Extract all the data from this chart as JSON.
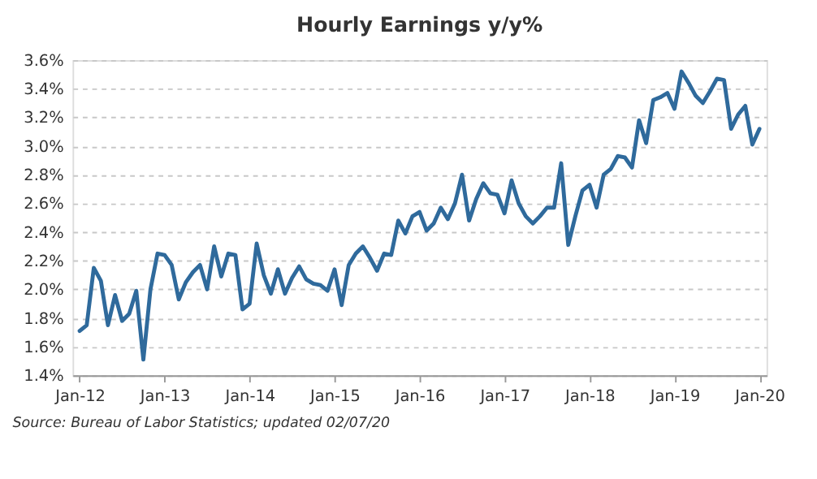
{
  "chart_data": {
    "type": "line",
    "title": "Hourly Earnings y/y%",
    "annotations": [
      "Source: Bureau of Labor Statistics; updated 02/07/20"
    ],
    "x": [
      "2012-01",
      "2012-02",
      "2012-03",
      "2012-04",
      "2012-05",
      "2012-06",
      "2012-07",
      "2012-08",
      "2012-09",
      "2012-10",
      "2012-11",
      "2012-12",
      "2013-01",
      "2013-02",
      "2013-03",
      "2013-04",
      "2013-05",
      "2013-06",
      "2013-07",
      "2013-08",
      "2013-09",
      "2013-10",
      "2013-11",
      "2013-12",
      "2014-01",
      "2014-02",
      "2014-03",
      "2014-04",
      "2014-05",
      "2014-06",
      "2014-07",
      "2014-08",
      "2014-09",
      "2014-10",
      "2014-11",
      "2014-12",
      "2015-01",
      "2015-02",
      "2015-03",
      "2015-04",
      "2015-05",
      "2015-06",
      "2015-07",
      "2015-08",
      "2015-09",
      "2015-10",
      "2015-11",
      "2015-12",
      "2016-01",
      "2016-02",
      "2016-03",
      "2016-04",
      "2016-05",
      "2016-06",
      "2016-07",
      "2016-08",
      "2016-09",
      "2016-10",
      "2016-11",
      "2016-12",
      "2017-01",
      "2017-02",
      "2017-03",
      "2017-04",
      "2017-05",
      "2017-06",
      "2017-07",
      "2017-08",
      "2017-09",
      "2017-10",
      "2017-11",
      "2017-12",
      "2018-01",
      "2018-02",
      "2018-03",
      "2018-04",
      "2018-05",
      "2018-06",
      "2018-07",
      "2018-08",
      "2018-09",
      "2018-10",
      "2018-11",
      "2018-12",
      "2019-01",
      "2019-02",
      "2019-03",
      "2019-04",
      "2019-05",
      "2019-06",
      "2019-07",
      "2019-08",
      "2019-09",
      "2019-10",
      "2019-11",
      "2019-12",
      "2020-01"
    ],
    "series": [
      {
        "color": "#2f6a9c",
        "values": [
          1.71,
          1.75,
          2.15,
          2.06,
          1.75,
          1.96,
          1.78,
          1.83,
          1.99,
          1.51,
          2.0,
          2.25,
          2.24,
          2.17,
          1.93,
          2.05,
          2.12,
          2.17,
          2.0,
          2.3,
          2.09,
          2.25,
          2.24,
          1.86,
          1.9,
          2.32,
          2.1,
          1.97,
          2.14,
          1.97,
          2.08,
          2.16,
          2.07,
          2.04,
          2.03,
          1.99,
          2.14,
          1.89,
          2.17,
          2.25,
          2.3,
          2.22,
          2.13,
          2.25,
          2.24,
          2.48,
          2.39,
          2.51,
          2.54,
          2.41,
          2.46,
          2.57,
          2.49,
          2.6,
          2.8,
          2.48,
          2.63,
          2.74,
          2.67,
          2.66,
          2.53,
          2.76,
          2.6,
          2.51,
          2.46,
          2.51,
          2.57,
          2.57,
          2.88,
          2.31,
          2.51,
          2.69,
          2.73,
          2.57,
          2.8,
          2.84,
          2.93,
          2.92,
          2.85,
          3.18,
          3.02,
          3.32,
          3.34,
          3.37,
          3.26,
          3.52,
          3.44,
          3.35,
          3.3,
          3.38,
          3.47,
          3.46,
          3.12,
          3.22,
          3.28,
          3.01,
          3.12
        ]
      }
    ],
    "xlim": [
      "2011-12",
      "2020-02"
    ],
    "xticks": [
      {
        "value": "2012-01",
        "label": "Jan-12"
      },
      {
        "value": "2013-01",
        "label": "Jan-13"
      },
      {
        "value": "2014-01",
        "label": "Jan-14"
      },
      {
        "value": "2015-01",
        "label": "Jan-15"
      },
      {
        "value": "2016-01",
        "label": "Jan-16"
      },
      {
        "value": "2017-01",
        "label": "Jan-17"
      },
      {
        "value": "2018-01",
        "label": "Jan-18"
      },
      {
        "value": "2019-01",
        "label": "Jan-19"
      },
      {
        "value": "2020-01",
        "label": "Jan-20"
      }
    ],
    "ylim": [
      1.4,
      3.6
    ],
    "yticks": [
      {
        "value": 1.4,
        "label": "1.4%"
      },
      {
        "value": 1.6,
        "label": "1.6%"
      },
      {
        "value": 1.8,
        "label": "1.8%"
      },
      {
        "value": 2.0,
        "label": "2.0%"
      },
      {
        "value": 2.2,
        "label": "2.2%"
      },
      {
        "value": 2.4,
        "label": "2.4%"
      },
      {
        "value": 2.6,
        "label": "2.6%"
      },
      {
        "value": 2.8,
        "label": "2.8%"
      },
      {
        "value": 3.0,
        "label": "3.0%"
      },
      {
        "value": 3.2,
        "label": "3.2%"
      },
      {
        "value": 3.4,
        "label": "3.4%"
      },
      {
        "value": 3.6,
        "label": "3.6%"
      }
    ],
    "grid": "y",
    "marker": "none",
    "line_style": "solid"
  }
}
